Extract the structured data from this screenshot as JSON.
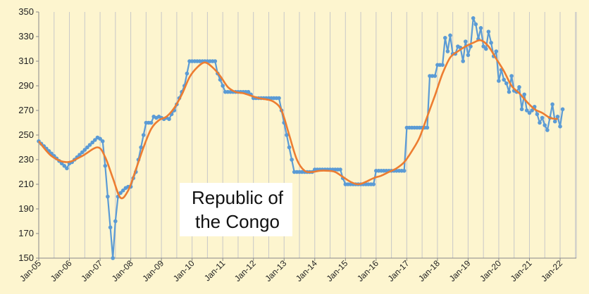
{
  "chart_data": {
    "type": "line",
    "title_lines": [
      "Republic of",
      "the Congo"
    ],
    "xlabel": "",
    "ylabel": "",
    "ylim": [
      150,
      350
    ],
    "yticks": [
      150,
      170,
      190,
      210,
      230,
      250,
      270,
      290,
      310,
      330,
      350
    ],
    "xlim": [
      "2005-01",
      "2022-02"
    ],
    "xticks": [
      "Jan-05",
      "Jan-06",
      "Jan-07",
      "Jan-08",
      "Jan-09",
      "Jan-10",
      "Jan-11",
      "Jan-12",
      "Jan-13",
      "Jan-14",
      "Jan-15",
      "Jan-16",
      "Jan-17",
      "Jan-18",
      "Jan-19",
      "Jan-20",
      "Jan-21",
      "Jan-22"
    ],
    "grid": "vertical",
    "legend": "none",
    "series": [
      {
        "color": "#5b9bd5",
        "markers": true,
        "points": [
          [
            "2005-01",
            245
          ],
          [
            "2005-02",
            243
          ],
          [
            "2005-03",
            241
          ],
          [
            "2005-04",
            239
          ],
          [
            "2005-05",
            237
          ],
          [
            "2005-06",
            235
          ],
          [
            "2005-07",
            233
          ],
          [
            "2005-08",
            231
          ],
          [
            "2005-09",
            229
          ],
          [
            "2005-10",
            227
          ],
          [
            "2005-11",
            225
          ],
          [
            "2005-12",
            223
          ],
          [
            "2006-01",
            227
          ],
          [
            "2006-02",
            228
          ],
          [
            "2006-03",
            230
          ],
          [
            "2006-04",
            232
          ],
          [
            "2006-05",
            234
          ],
          [
            "2006-06",
            236
          ],
          [
            "2006-07",
            238
          ],
          [
            "2006-08",
            240
          ],
          [
            "2006-09",
            242
          ],
          [
            "2006-10",
            244
          ],
          [
            "2006-11",
            246
          ],
          [
            "2006-12",
            248
          ],
          [
            "2007-01",
            247
          ],
          [
            "2007-02",
            245
          ],
          [
            "2007-03",
            225
          ],
          [
            "2007-04",
            200
          ],
          [
            "2007-05",
            175
          ],
          [
            "2007-06",
            150
          ],
          [
            "2007-07",
            180
          ],
          [
            "2007-08",
            200
          ],
          [
            "2007-09",
            203
          ],
          [
            "2007-10",
            205
          ],
          [
            "2007-11",
            207
          ],
          [
            "2007-12",
            208
          ],
          [
            "2008-01",
            208
          ],
          [
            "2008-02",
            215
          ],
          [
            "2008-03",
            220
          ],
          [
            "2008-04",
            230
          ],
          [
            "2008-05",
            240
          ],
          [
            "2008-06",
            250
          ],
          [
            "2008-07",
            260
          ],
          [
            "2008-08",
            260
          ],
          [
            "2008-09",
            260
          ],
          [
            "2008-10",
            265
          ],
          [
            "2008-11",
            264
          ],
          [
            "2008-12",
            265
          ],
          [
            "2009-01",
            264
          ],
          [
            "2009-02",
            263
          ],
          [
            "2009-03",
            264
          ],
          [
            "2009-04",
            263
          ],
          [
            "2009-05",
            267
          ],
          [
            "2009-06",
            270
          ],
          [
            "2009-07",
            275
          ],
          [
            "2009-08",
            280
          ],
          [
            "2009-09",
            285
          ],
          [
            "2009-10",
            290
          ],
          [
            "2009-11",
            300
          ],
          [
            "2009-12",
            310
          ],
          [
            "2010-01",
            310
          ],
          [
            "2010-02",
            310
          ],
          [
            "2010-03",
            310
          ],
          [
            "2010-04",
            310
          ],
          [
            "2010-05",
            310
          ],
          [
            "2010-06",
            310
          ],
          [
            "2010-07",
            310
          ],
          [
            "2010-08",
            310
          ],
          [
            "2010-09",
            310
          ],
          [
            "2010-10",
            310
          ],
          [
            "2010-11",
            300
          ],
          [
            "2010-12",
            295
          ],
          [
            "2011-01",
            290
          ],
          [
            "2011-02",
            285
          ],
          [
            "2011-03",
            285
          ],
          [
            "2011-04",
            285
          ],
          [
            "2011-05",
            285
          ],
          [
            "2011-06",
            285
          ],
          [
            "2011-07",
            285
          ],
          [
            "2011-08",
            285
          ],
          [
            "2011-09",
            285
          ],
          [
            "2011-10",
            285
          ],
          [
            "2011-11",
            285
          ],
          [
            "2011-12",
            283
          ],
          [
            "2012-01",
            280
          ],
          [
            "2012-02",
            280
          ],
          [
            "2012-03",
            280
          ],
          [
            "2012-04",
            280
          ],
          [
            "2012-05",
            280
          ],
          [
            "2012-06",
            280
          ],
          [
            "2012-07",
            280
          ],
          [
            "2012-08",
            280
          ],
          [
            "2012-09",
            280
          ],
          [
            "2012-10",
            280
          ],
          [
            "2012-11",
            280
          ],
          [
            "2012-12",
            270
          ],
          [
            "2013-01",
            260
          ],
          [
            "2013-02",
            250
          ],
          [
            "2013-03",
            240
          ],
          [
            "2013-04",
            230
          ],
          [
            "2013-05",
            220
          ],
          [
            "2013-06",
            220
          ],
          [
            "2013-07",
            220
          ],
          [
            "2013-08",
            220
          ],
          [
            "2013-09",
            220
          ],
          [
            "2013-10",
            220
          ],
          [
            "2013-11",
            220
          ],
          [
            "2013-12",
            220
          ],
          [
            "2014-01",
            222
          ],
          [
            "2014-02",
            222
          ],
          [
            "2014-03",
            222
          ],
          [
            "2014-04",
            222
          ],
          [
            "2014-05",
            222
          ],
          [
            "2014-06",
            222
          ],
          [
            "2014-07",
            222
          ],
          [
            "2014-08",
            222
          ],
          [
            "2014-09",
            222
          ],
          [
            "2014-10",
            222
          ],
          [
            "2014-11",
            222
          ],
          [
            "2014-12",
            215
          ],
          [
            "2015-01",
            210
          ],
          [
            "2015-02",
            210
          ],
          [
            "2015-03",
            210
          ],
          [
            "2015-04",
            210
          ],
          [
            "2015-05",
            210
          ],
          [
            "2015-06",
            210
          ],
          [
            "2015-07",
            210
          ],
          [
            "2015-08",
            210
          ],
          [
            "2015-09",
            210
          ],
          [
            "2015-10",
            210
          ],
          [
            "2015-11",
            210
          ],
          [
            "2015-12",
            210
          ],
          [
            "2016-01",
            221
          ],
          [
            "2016-02",
            221
          ],
          [
            "2016-03",
            221
          ],
          [
            "2016-04",
            221
          ],
          [
            "2016-05",
            221
          ],
          [
            "2016-06",
            221
          ],
          [
            "2016-07",
            221
          ],
          [
            "2016-08",
            221
          ],
          [
            "2016-09",
            221
          ],
          [
            "2016-10",
            221
          ],
          [
            "2016-11",
            221
          ],
          [
            "2016-12",
            221
          ],
          [
            "2017-01",
            256
          ],
          [
            "2017-02",
            256
          ],
          [
            "2017-03",
            256
          ],
          [
            "2017-04",
            256
          ],
          [
            "2017-05",
            256
          ],
          [
            "2017-06",
            256
          ],
          [
            "2017-07",
            256
          ],
          [
            "2017-08",
            256
          ],
          [
            "2017-09",
            256
          ],
          [
            "2017-10",
            298
          ],
          [
            "2017-11",
            298
          ],
          [
            "2017-12",
            298
          ],
          [
            "2018-01",
            307
          ],
          [
            "2018-02",
            307
          ],
          [
            "2018-03",
            307
          ],
          [
            "2018-04",
            329
          ],
          [
            "2018-05",
            318
          ],
          [
            "2018-06",
            331
          ],
          [
            "2018-07",
            316
          ],
          [
            "2018-08",
            316
          ],
          [
            "2018-09",
            322
          ],
          [
            "2018-10",
            321
          ],
          [
            "2018-11",
            310
          ],
          [
            "2018-12",
            326
          ],
          [
            "2019-01",
            315
          ],
          [
            "2019-02",
            322
          ],
          [
            "2019-03",
            345
          ],
          [
            "2019-04",
            340
          ],
          [
            "2019-05",
            328
          ],
          [
            "2019-06",
            337
          ],
          [
            "2019-07",
            322
          ],
          [
            "2019-08",
            320
          ],
          [
            "2019-09",
            334
          ],
          [
            "2019-10",
            325
          ],
          [
            "2019-11",
            314
          ],
          [
            "2019-12",
            318
          ],
          [
            "2020-01",
            294
          ],
          [
            "2020-02",
            303
          ],
          [
            "2020-03",
            295
          ],
          [
            "2020-04",
            292
          ],
          [
            "2020-05",
            285
          ],
          [
            "2020-06",
            298
          ],
          [
            "2020-07",
            286
          ],
          [
            "2020-08",
            285
          ],
          [
            "2020-09",
            289
          ],
          [
            "2020-10",
            271
          ],
          [
            "2020-11",
            283
          ],
          [
            "2020-12",
            270
          ],
          [
            "2021-01",
            268
          ],
          [
            "2021-02",
            270
          ],
          [
            "2021-03",
            273
          ],
          [
            "2021-04",
            267
          ],
          [
            "2021-05",
            260
          ],
          [
            "2021-06",
            264
          ],
          [
            "2021-07",
            258
          ],
          [
            "2021-08",
            254
          ],
          [
            "2021-09",
            264
          ],
          [
            "2021-10",
            275
          ],
          [
            "2021-11",
            261
          ],
          [
            "2021-12",
            265
          ],
          [
            "2022-01",
            257
          ],
          [
            "2022-02",
            271
          ]
        ]
      },
      {
        "color": "#ed7d31",
        "markers": false,
        "points": [
          [
            "2005-01",
            245
          ],
          [
            "2005-06",
            233
          ],
          [
            "2005-12",
            228
          ],
          [
            "2006-06",
            233
          ],
          [
            "2006-12",
            240
          ],
          [
            "2007-03",
            232
          ],
          [
            "2007-06",
            215
          ],
          [
            "2007-09",
            199
          ],
          [
            "2007-12",
            205
          ],
          [
            "2008-03",
            222
          ],
          [
            "2008-06",
            240
          ],
          [
            "2008-09",
            255
          ],
          [
            "2008-12",
            262
          ],
          [
            "2009-03",
            265
          ],
          [
            "2009-06",
            272
          ],
          [
            "2009-09",
            283
          ],
          [
            "2009-12",
            297
          ],
          [
            "2010-03",
            305
          ],
          [
            "2010-06",
            309
          ],
          [
            "2010-09",
            305
          ],
          [
            "2010-12",
            298
          ],
          [
            "2011-03",
            289
          ],
          [
            "2011-06",
            285
          ],
          [
            "2011-09",
            284
          ],
          [
            "2011-12",
            282
          ],
          [
            "2012-03",
            280
          ],
          [
            "2012-06",
            279
          ],
          [
            "2012-09",
            277
          ],
          [
            "2012-12",
            270
          ],
          [
            "2013-03",
            250
          ],
          [
            "2013-06",
            230
          ],
          [
            "2013-09",
            221
          ],
          [
            "2013-12",
            220
          ],
          [
            "2014-03",
            221
          ],
          [
            "2014-06",
            221
          ],
          [
            "2014-09",
            220
          ],
          [
            "2014-12",
            216
          ],
          [
            "2015-03",
            212
          ],
          [
            "2015-06",
            210
          ],
          [
            "2015-09",
            212
          ],
          [
            "2015-12",
            215
          ],
          [
            "2016-03",
            217
          ],
          [
            "2016-06",
            220
          ],
          [
            "2016-09",
            223
          ],
          [
            "2016-12",
            228
          ],
          [
            "2017-03",
            237
          ],
          [
            "2017-06",
            248
          ],
          [
            "2017-09",
            265
          ],
          [
            "2017-12",
            282
          ],
          [
            "2018-03",
            300
          ],
          [
            "2018-06",
            313
          ],
          [
            "2018-09",
            318
          ],
          [
            "2018-12",
            322
          ],
          [
            "2019-03",
            325
          ],
          [
            "2019-06",
            327
          ],
          [
            "2019-09",
            322
          ],
          [
            "2019-12",
            312
          ],
          [
            "2020-03",
            302
          ],
          [
            "2020-06",
            290
          ],
          [
            "2020-09",
            284
          ],
          [
            "2020-12",
            277
          ],
          [
            "2021-03",
            271
          ],
          [
            "2021-06",
            268
          ],
          [
            "2021-09",
            264
          ],
          [
            "2021-12",
            263
          ]
        ]
      }
    ]
  }
}
